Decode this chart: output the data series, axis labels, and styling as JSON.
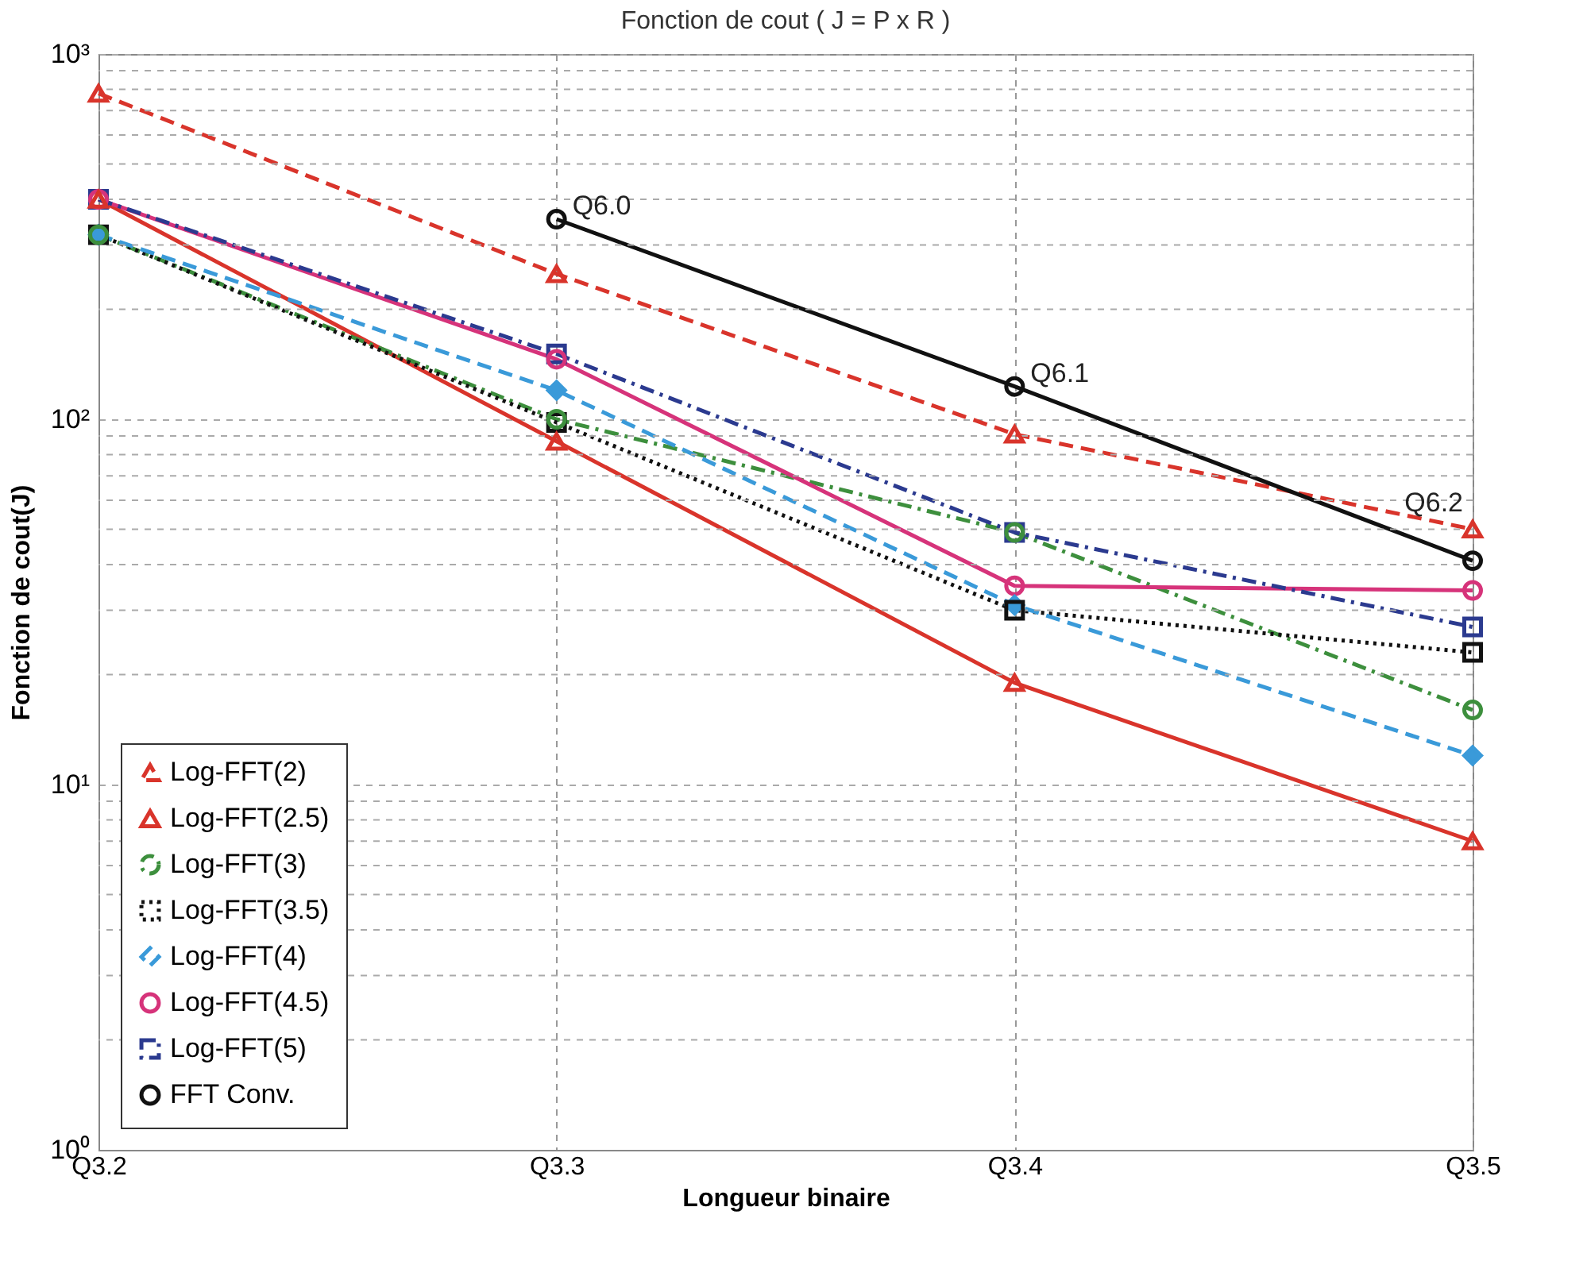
{
  "chart_data": {
    "type": "line",
    "title": "Fonction de cout ( J = P x R )",
    "xlabel": "Longueur binaire",
    "ylabel": "Fonction de cout(J)",
    "categories": [
      "Q3.2",
      "Q3.3",
      "Q3.4",
      "Q3.5"
    ],
    "log": true,
    "ylim": [
      1,
      1000
    ],
    "yticks": [
      {
        "value": 1,
        "label": "10⁰"
      },
      {
        "value": 2,
        "label": null
      },
      {
        "value": 3,
        "label": null
      },
      {
        "value": 4,
        "label": null
      },
      {
        "value": 5,
        "label": null
      },
      {
        "value": 6,
        "label": null
      },
      {
        "value": 7,
        "label": null
      },
      {
        "value": 8,
        "label": null
      },
      {
        "value": 9,
        "label": null
      },
      {
        "value": 10,
        "label": "10¹"
      },
      {
        "value": 20,
        "label": null
      },
      {
        "value": 30,
        "label": null
      },
      {
        "value": 40,
        "label": null
      },
      {
        "value": 50,
        "label": null
      },
      {
        "value": 60,
        "label": null
      },
      {
        "value": 70,
        "label": null
      },
      {
        "value": 80,
        "label": null
      },
      {
        "value": 90,
        "label": null
      },
      {
        "value": 100,
        "label": "10²"
      },
      {
        "value": 200,
        "label": null
      },
      {
        "value": 300,
        "label": null
      },
      {
        "value": 400,
        "label": null
      },
      {
        "value": 500,
        "label": null
      },
      {
        "value": 600,
        "label": null
      },
      {
        "value": 700,
        "label": null
      },
      {
        "value": 800,
        "label": null
      },
      {
        "value": 900,
        "label": null
      },
      {
        "value": 1000,
        "label": "10³"
      }
    ],
    "grid": true,
    "legend": "bottom left",
    "series": [
      {
        "name": "Log-FFT(2)",
        "color": "#d9342b",
        "marker": "triangle",
        "line_style": "dashed",
        "values": [
          780,
          250,
          91,
          50
        ]
      },
      {
        "name": "Log-FFT(2.5)",
        "color": "#d9342b",
        "marker": "triangle",
        "line_style": "solid",
        "values": [
          400,
          87,
          19,
          7
        ]
      },
      {
        "name": "Log-FFT(3)",
        "color": "#3d8f3d",
        "marker": "circle",
        "line_style": "dashdot",
        "values": [
          320,
          100,
          49,
          16
        ]
      },
      {
        "name": "Log-FFT(3.5)",
        "color": "#111111",
        "marker": "square",
        "line_style": "dotted",
        "values": [
          320,
          98,
          30,
          23
        ]
      },
      {
        "name": "Log-FFT(4)",
        "color": "#3a9ad9",
        "marker": "diamond",
        "line_style": "dashed",
        "values": [
          320,
          120,
          31,
          12
        ]
      },
      {
        "name": "Log-FFT(4.5)",
        "color": "#d6337a",
        "marker": "circle",
        "line_style": "solid",
        "values": [
          400,
          146,
          35,
          34
        ]
      },
      {
        "name": "Log-FFT(5)",
        "color": "#2b3a8f",
        "marker": "square",
        "line_style": "dashdot",
        "values": [
          400,
          151,
          49,
          27
        ]
      },
      {
        "name": "FFT Conv.",
        "color": "#111111",
        "marker": "circle",
        "line_style": "solid",
        "values": [
          null,
          353,
          123,
          41
        ]
      }
    ],
    "annotations": [
      {
        "text": "Q6.0",
        "x": "Q3.3",
        "y": 353
      },
      {
        "text": "Q6.1",
        "x": "Q3.4",
        "y": 123
      },
      {
        "text": "Q6.2",
        "x": "Q3.5",
        "y": 41
      }
    ]
  }
}
